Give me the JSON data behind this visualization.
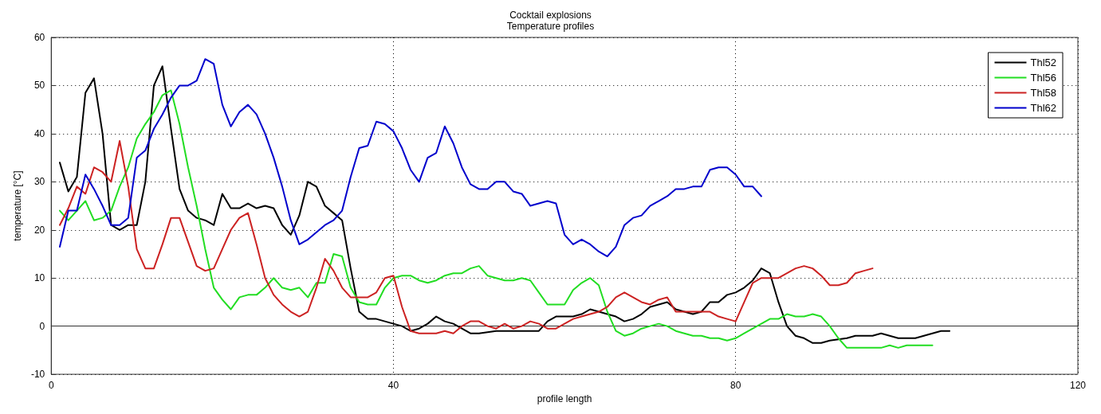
{
  "chart_data": {
    "type": "line",
    "title": "Cocktail explosions",
    "subtitle": "Temperature profiles",
    "xlabel": "profile length",
    "ylabel": "temperature [°C]",
    "xlim": [
      0,
      120
    ],
    "xticks": [
      0,
      40,
      80,
      120
    ],
    "ylim": [
      -10,
      60
    ],
    "yticks": [
      -10,
      0,
      10,
      20,
      30,
      40,
      50,
      60
    ],
    "grid": true,
    "legend": "top right",
    "marker": "none",
    "line_style": "solid",
    "series": [
      {
        "name": "Thl52",
        "color": "#000000",
        "x": [
          1,
          2,
          3,
          4,
          5,
          6,
          7,
          8,
          9,
          10,
          11,
          12,
          13,
          14,
          15,
          16,
          17,
          18,
          19,
          20,
          21,
          22,
          23,
          24,
          25,
          26,
          27,
          28,
          29,
          30,
          31,
          32,
          33,
          34,
          35,
          36,
          37,
          38,
          39,
          40,
          41,
          42,
          43,
          44,
          45,
          46,
          47,
          48,
          49,
          50,
          52,
          56,
          57,
          58,
          59,
          61,
          62,
          63,
          64,
          65,
          66,
          67,
          68,
          69,
          70,
          71,
          72,
          73,
          74,
          75,
          76,
          77,
          78,
          79,
          80,
          81,
          82,
          83,
          84,
          85,
          86,
          87,
          88,
          89,
          90,
          91,
          93,
          94,
          96,
          97,
          98,
          99,
          101,
          102,
          103,
          104,
          105
        ],
        "values": [
          34,
          28,
          31,
          48.5,
          51.5,
          40,
          21,
          20,
          21,
          21,
          30,
          50,
          54,
          41,
          28.5,
          24,
          22.5,
          22,
          21,
          27.5,
          24.5,
          24.5,
          25.5,
          24.5,
          25,
          24.5,
          21,
          19,
          23,
          30,
          29,
          25,
          23.5,
          22,
          12,
          3,
          1.5,
          1.5,
          1,
          0.5,
          0,
          -1,
          -0.5,
          0.5,
          2,
          1,
          0.5,
          -0.5,
          -1.5,
          -1.5,
          -1,
          -1,
          -1,
          1,
          2,
          2,
          2.5,
          3.5,
          3,
          2.5,
          2,
          1,
          1.5,
          2.5,
          4,
          4.5,
          5,
          3.5,
          3,
          2.5,
          3,
          5,
          5,
          6.5,
          7,
          8,
          9.5,
          12,
          11,
          5,
          0,
          -2,
          -2.5,
          -3.5,
          -3.5,
          -3,
          -2.5,
          -2,
          -2,
          -1.5,
          -2,
          -2.5,
          -2.5,
          -2,
          -1.5,
          -1,
          -1
        ]
      },
      {
        "name": "Thl56",
        "color": "#22dd22",
        "x": [
          1,
          2,
          3,
          4,
          5,
          6,
          7,
          8,
          9,
          10,
          11,
          12,
          13,
          14,
          15,
          16,
          17,
          18,
          19,
          20,
          21,
          22,
          23,
          24,
          25,
          26,
          27,
          28,
          29,
          30,
          31,
          32,
          33,
          34,
          35,
          36,
          37,
          38,
          39,
          40,
          41,
          42,
          43,
          44,
          45,
          46,
          47,
          48,
          49,
          50,
          51,
          52,
          53,
          54,
          55,
          56,
          57,
          58,
          59,
          60,
          61,
          62,
          63,
          64,
          65,
          66,
          67,
          68,
          69,
          70,
          71,
          72,
          73,
          74,
          75,
          76,
          77,
          78,
          79,
          80,
          81,
          82,
          83,
          84,
          85,
          86,
          87,
          88,
          89,
          90,
          91,
          92,
          93,
          94,
          96,
          97,
          98,
          99,
          100,
          101,
          102,
          103
        ],
        "values": [
          24,
          22,
          24,
          26,
          22,
          22.5,
          24,
          29,
          33,
          39,
          42,
          44.5,
          48,
          49,
          42,
          33,
          25,
          16,
          8,
          5.5,
          3.5,
          6,
          6.5,
          6.5,
          8,
          10,
          8,
          7.5,
          8,
          6,
          9,
          9,
          15,
          14.5,
          8,
          5,
          4.5,
          4.5,
          8,
          10,
          10.5,
          10.5,
          9.5,
          9,
          9.5,
          10.5,
          11,
          11,
          12,
          12.5,
          10.5,
          10,
          9.5,
          9.5,
          10,
          9.5,
          7,
          4.5,
          4.5,
          4.5,
          7.5,
          9,
          10,
          8.5,
          3,
          -1,
          -2,
          -1.5,
          -0.5,
          0,
          0.5,
          0,
          -1,
          -1.5,
          -2,
          -2,
          -2.5,
          -2.5,
          -3,
          -2.5,
          -1.5,
          -0.5,
          0.5,
          1.5,
          1.5,
          2.5,
          2,
          2,
          2.5,
          2,
          0,
          -2.5,
          -4.5,
          -4.5,
          -4.5,
          -4.5,
          -4,
          -4.5,
          -4,
          -4,
          -4,
          -4
        ]
      },
      {
        "name": "Thl58",
        "color": "#cc2222",
        "x": [
          1,
          2,
          3,
          4,
          5,
          6,
          7,
          8,
          9,
          10,
          11,
          12,
          13,
          14,
          15,
          16,
          17,
          18,
          19,
          20,
          21,
          22,
          23,
          24,
          25,
          26,
          27,
          28,
          29,
          30,
          31,
          32,
          33,
          34,
          35,
          36,
          37,
          38,
          39,
          40,
          41,
          42,
          43,
          44,
          45,
          46,
          47,
          48,
          49,
          50,
          51,
          52,
          53,
          54,
          55,
          56,
          57,
          58,
          59,
          60,
          61,
          62,
          63,
          64,
          65,
          66,
          67,
          68,
          69,
          70,
          71,
          72,
          73,
          74,
          75,
          76,
          77,
          78,
          79,
          80,
          81,
          82,
          83,
          84,
          85,
          86,
          87,
          88,
          89,
          90,
          91,
          92,
          93,
          94,
          95,
          96
        ],
        "values": [
          21,
          24.5,
          29,
          27.5,
          33,
          32,
          30,
          38.5,
          29,
          16,
          12,
          12,
          17,
          22.5,
          22.5,
          17.5,
          12.5,
          11.5,
          12,
          16,
          20,
          22.5,
          23.5,
          17,
          10,
          6.5,
          4.5,
          3,
          2,
          3,
          8,
          14,
          11.5,
          8,
          6,
          6,
          6,
          7,
          10,
          10.5,
          4,
          -1,
          -1.5,
          -1.5,
          -1.5,
          -1,
          -1.5,
          0,
          1,
          1,
          0,
          -0.5,
          0.5,
          -0.5,
          0,
          1,
          0.5,
          -0.5,
          -0.5,
          0.5,
          1.5,
          2,
          2.5,
          3,
          4,
          6,
          7,
          6,
          5,
          4.5,
          5.5,
          6,
          3,
          3,
          3,
          3,
          3,
          2,
          1.5,
          1,
          5,
          9,
          10,
          10,
          10,
          11,
          12,
          12.5,
          12,
          10.5,
          8.5,
          8.5,
          9,
          11,
          11.5,
          12
        ]
      },
      {
        "name": "Thl62",
        "color": "#0000cc",
        "x": [
          1,
          2,
          3,
          4,
          5,
          6,
          7,
          8,
          9,
          10,
          11,
          12,
          13,
          14,
          15,
          16,
          17,
          18,
          19,
          20,
          21,
          22,
          23,
          24,
          25,
          26,
          27,
          28,
          29,
          30,
          31,
          32,
          33,
          34,
          35,
          36,
          37,
          38,
          39,
          40,
          41,
          42,
          43,
          44,
          45,
          46,
          47,
          48,
          49,
          50,
          51,
          52,
          53,
          54,
          55,
          56,
          57,
          58,
          59,
          60,
          61,
          62,
          63,
          64,
          65,
          66,
          67,
          68,
          69,
          70,
          71,
          72,
          73,
          74,
          75,
          76,
          77,
          78,
          79,
          80,
          81,
          82,
          83
        ],
        "values": [
          16.5,
          24,
          24,
          31.5,
          28.5,
          25,
          21,
          21,
          22.5,
          35,
          36.5,
          41,
          44,
          47.5,
          50,
          50,
          51,
          55.5,
          54.5,
          46,
          41.5,
          44.5,
          46,
          44,
          40,
          35,
          29,
          22,
          17,
          18,
          19.5,
          21,
          22,
          24,
          31,
          37,
          37.5,
          42.5,
          42,
          40.5,
          37,
          32.5,
          30,
          35,
          36,
          41.5,
          38,
          33,
          29.5,
          28.5,
          28.5,
          30,
          30,
          28,
          27.5,
          25,
          25.5,
          26,
          25.5,
          19,
          17,
          18,
          17,
          15.5,
          14.5,
          16.5,
          21,
          22.5,
          23,
          25,
          26,
          27,
          28.5,
          28.5,
          29,
          29,
          32.5,
          33,
          33,
          31.5,
          29,
          29,
          27
        ]
      }
    ]
  }
}
